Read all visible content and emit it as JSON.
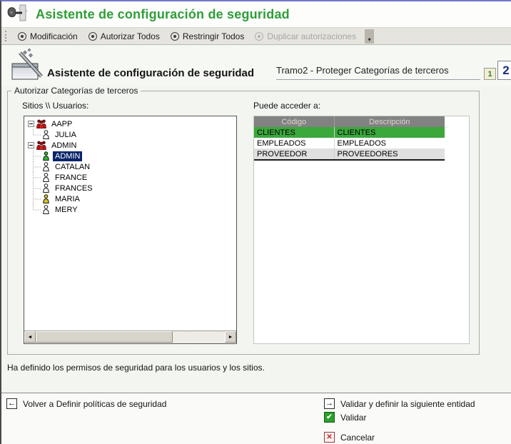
{
  "window": {
    "title": "Asistente de configuración de seguridad"
  },
  "toolbar": {
    "buttons": [
      {
        "label": "Modificación",
        "enabled": true
      },
      {
        "label": "Autorizar Todos",
        "enabled": true
      },
      {
        "label": "Restringir Todos",
        "enabled": true
      },
      {
        "label": "Duplicar autorizaciones",
        "enabled": false
      }
    ]
  },
  "header": {
    "title": "Asistente de configuración de seguridad",
    "step_label": "Tramo2 - Proteger Categorías de terceros",
    "pages": [
      {
        "label": "1",
        "current": false
      },
      {
        "label": "2",
        "current": true
      }
    ]
  },
  "main": {
    "groupbox_title": "Autorizar Categorías de terceros",
    "tree": {
      "label": "Sitios \\\\ Usuarios:",
      "groups": [
        {
          "label": "AAPP",
          "children": [
            {
              "label": "JULIA",
              "icon_color": "white",
              "selected": false
            }
          ]
        },
        {
          "label": "ADMIN",
          "children": [
            {
              "label": "ADMIN",
              "icon_color": "green",
              "selected": true
            },
            {
              "label": "CATALAN",
              "icon_color": "white",
              "selected": false
            },
            {
              "label": "FRANCE",
              "icon_color": "white",
              "selected": false
            },
            {
              "label": "FRANCES",
              "icon_color": "white",
              "selected": false
            },
            {
              "label": "MARIA",
              "icon_color": "yellow",
              "selected": false
            },
            {
              "label": "MERY",
              "icon_color": "white",
              "selected": false
            }
          ]
        }
      ]
    },
    "table": {
      "label": "Puede acceder a:",
      "columns": [
        "Código",
        "Descripción"
      ],
      "rows": [
        {
          "cells": [
            "CLIENTES",
            "CLIENTES"
          ],
          "highlight": "green"
        },
        {
          "cells": [
            "EMPLEADOS",
            "EMPLEADOS"
          ],
          "highlight": "white"
        },
        {
          "cells": [
            "PROVEEDOR",
            "PROVEEDORES"
          ],
          "highlight": "gray"
        }
      ]
    },
    "status_text": "Ha definido los permisos de seguridad para los usuarios y los sitios."
  },
  "footer": {
    "back_label": "Volver a Definir políticas de seguridad",
    "next_label": "Validar y definir la siguiente entidad",
    "validate_label": "Validar",
    "cancel_label": "Cancelar"
  },
  "icons": {
    "back_arrow": "←",
    "next_arrow": "→",
    "check": "✔",
    "cross": "✕",
    "overflow": "▾",
    "scroll_left": "◄",
    "scroll_right": "►"
  },
  "colors": {
    "title_green": "#2e9e38",
    "selection_blue": "#0a246a",
    "row_green": "#3aa83a",
    "validate_green": "#2ca02c",
    "cancel_red": "#cc2222",
    "table_header_gray": "#828282"
  }
}
